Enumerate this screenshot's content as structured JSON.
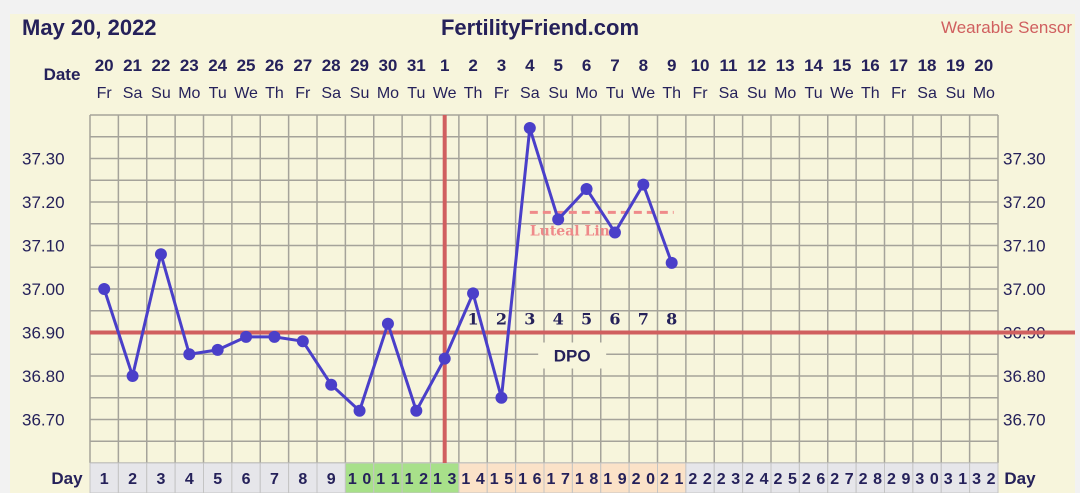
{
  "header": {
    "date": "May 20, 2022",
    "site": "FertilityFriend.com",
    "source": "Wearable Sensor",
    "date_row_label": "Date",
    "day_row_label": "Day"
  },
  "colors": {
    "background": "#f7f5dc",
    "temperature_line": "#4a3fc9",
    "coverline": "#d05f5f",
    "ovulation_line": "#d05f5f",
    "luteal_line": "#ef8a8a",
    "fertile_days": "#a8e08a",
    "luteal_days": "#fbe2c8",
    "other_days": "#e6e6ea",
    "text": "#25215a",
    "source_text": "#d05f5f"
  },
  "chart_data": {
    "type": "line",
    "dates": [
      "20",
      "21",
      "22",
      "23",
      "24",
      "25",
      "26",
      "27",
      "28",
      "29",
      "30",
      "31",
      "1",
      "2",
      "3",
      "4",
      "5",
      "6",
      "7",
      "8",
      "9",
      "10",
      "11",
      "12",
      "13",
      "14",
      "15",
      "16",
      "17",
      "18",
      "19",
      "20"
    ],
    "weekdays": [
      "Fr",
      "Sa",
      "Su",
      "Mo",
      "Tu",
      "We",
      "Th",
      "Fr",
      "Sa",
      "Su",
      "Mo",
      "Tu",
      "We",
      "Th",
      "Fr",
      "Sa",
      "Su",
      "Mo",
      "Tu",
      "We",
      "Th",
      "Fr",
      "Sa",
      "Su",
      "Mo",
      "Tu",
      "We",
      "Th",
      "Fr",
      "Sa",
      "Su",
      "Mo"
    ],
    "cycle_days": [
      1,
      2,
      3,
      4,
      5,
      6,
      7,
      8,
      9,
      10,
      11,
      12,
      13,
      14,
      15,
      16,
      17,
      18,
      19,
      20,
      21,
      22,
      23,
      24,
      25,
      26,
      27,
      28,
      29,
      30,
      31,
      32
    ],
    "fertile_days": [
      10,
      11,
      12,
      13
    ],
    "luteal_days": [
      14,
      15,
      16,
      17,
      18,
      19,
      20,
      21
    ],
    "temperatures": [
      37.0,
      36.8,
      37.08,
      36.85,
      36.86,
      36.89,
      36.89,
      36.88,
      36.78,
      36.72,
      36.92,
      36.72,
      36.84,
      36.99,
      36.75,
      37.37,
      37.16,
      37.23,
      37.13,
      37.24,
      37.06
    ],
    "y_ticks": [
      "37.30",
      "37.20",
      "37.10",
      "37.00",
      "36.90",
      "36.80",
      "36.70"
    ],
    "ylim": [
      36.6,
      37.4
    ],
    "coverline": 36.9,
    "ovulation_day": 13,
    "dpo_labels": [
      "1",
      "2",
      "3",
      "4",
      "5",
      "6",
      "7",
      "8"
    ],
    "dpo_title": "DPO",
    "luteal_line": {
      "value": 37.16,
      "from_day": 16,
      "to_day": 21,
      "label": "Luteal Line"
    },
    "grid": true
  }
}
